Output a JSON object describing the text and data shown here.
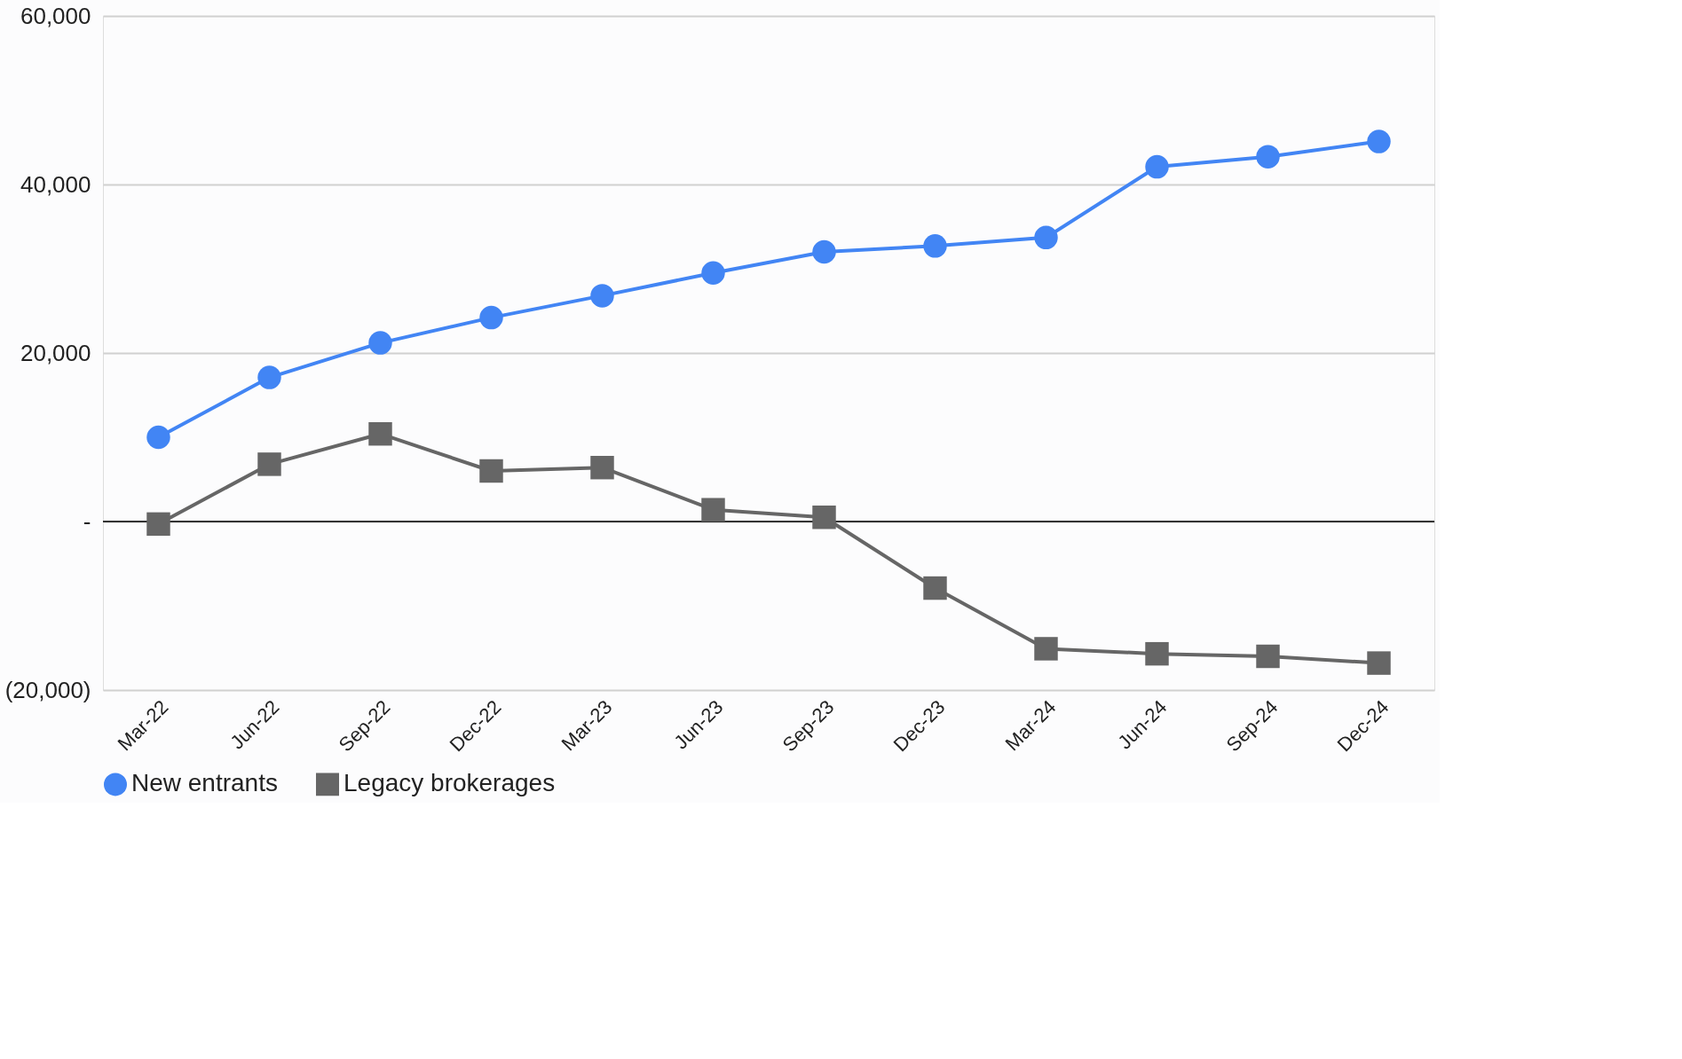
{
  "chart_data": {
    "type": "line",
    "categories": [
      "Mar-22",
      "Jun-22",
      "Sep-22",
      "Dec-22",
      "Mar-23",
      "Jun-23",
      "Sep-23",
      "Dec-23",
      "Mar-24",
      "Jun-24",
      "Sep-24",
      "Dec-24"
    ],
    "series": [
      {
        "name": "New entrants",
        "color": "#4285f4",
        "marker": "circle",
        "values": [
          10000,
          17100,
          21200,
          24200,
          26800,
          29500,
          32000,
          32700,
          33700,
          42100,
          43300,
          45100
        ]
      },
      {
        "name": "Legacy brokerages",
        "color": "#666666",
        "marker": "square",
        "values": [
          -300,
          6800,
          10400,
          6000,
          6400,
          1400,
          500,
          -7900,
          -15100,
          -15700,
          -16000,
          -16800
        ]
      }
    ],
    "ylim": [
      -20000,
      60000
    ],
    "yticks": [
      {
        "value": -20000,
        "label": "(20,000)"
      },
      {
        "value": 0,
        "label": "-"
      },
      {
        "value": 20000,
        "label": "20,000"
      },
      {
        "value": 40000,
        "label": "40,000"
      },
      {
        "value": 60000,
        "label": "60,000"
      }
    ],
    "ref_lines": [
      {
        "axis": "y",
        "value": 0,
        "color": "#333333"
      }
    ],
    "grid": "y",
    "legend": "bottom",
    "line_style": "solid"
  }
}
